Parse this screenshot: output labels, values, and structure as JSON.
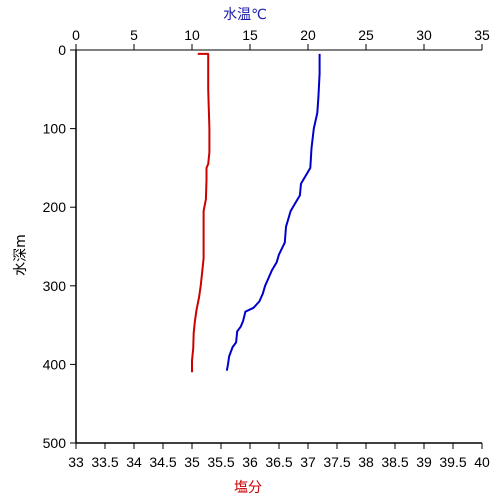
{
  "chart_data": {
    "type": "line",
    "title": "",
    "top_axis": {
      "label": "水温℃",
      "color": "#1a1aaa",
      "range": [
        0,
        35
      ],
      "ticks": [
        "0",
        "5",
        "10",
        "15",
        "20",
        "25",
        "30",
        "35"
      ]
    },
    "bottom_axis": {
      "label": "塩分",
      "color": "#cc0000",
      "range": [
        33,
        40
      ],
      "ticks": [
        "33",
        "33.5",
        "34",
        "34.5",
        "35",
        "35.5",
        "36",
        "36.5",
        "37",
        "37.5",
        "38",
        "38.5",
        "39",
        "39.5",
        "40"
      ]
    },
    "left_axis": {
      "label": "水深m",
      "range": [
        0,
        500
      ],
      "inverted": true,
      "ticks": [
        "0",
        "100",
        "200",
        "300",
        "400",
        "500"
      ]
    },
    "grid": false,
    "series": [
      {
        "axis": "top",
        "color": "#0000cc",
        "points": [
          [
            21.0,
            5
          ],
          [
            21.0,
            30
          ],
          [
            20.9,
            60
          ],
          [
            20.8,
            80
          ],
          [
            20.5,
            100
          ],
          [
            20.3,
            125
          ],
          [
            20.2,
            150
          ],
          [
            19.8,
            160
          ],
          [
            19.4,
            170
          ],
          [
            19.3,
            185
          ],
          [
            18.9,
            195
          ],
          [
            18.5,
            205
          ],
          [
            18.3,
            215
          ],
          [
            18.1,
            225
          ],
          [
            18.0,
            245
          ],
          [
            17.5,
            260
          ],
          [
            17.3,
            270
          ],
          [
            16.9,
            280
          ],
          [
            16.6,
            290
          ],
          [
            16.3,
            300
          ],
          [
            16.1,
            310
          ],
          [
            15.8,
            320
          ],
          [
            15.3,
            328
          ],
          [
            14.6,
            333
          ],
          [
            14.4,
            345
          ],
          [
            14.2,
            352
          ],
          [
            13.9,
            358
          ],
          [
            13.8,
            372
          ],
          [
            13.5,
            378
          ],
          [
            13.2,
            390
          ],
          [
            13.1,
            400
          ],
          [
            13.0,
            408
          ]
        ]
      },
      {
        "axis": "bottom",
        "color": "#cc0000",
        "points": [
          [
            35.1,
            5
          ],
          [
            35.28,
            5
          ],
          [
            35.28,
            50
          ],
          [
            35.3,
            100
          ],
          [
            35.3,
            130
          ],
          [
            35.28,
            145
          ],
          [
            35.25,
            150
          ],
          [
            35.25,
            165
          ],
          [
            35.24,
            190
          ],
          [
            35.2,
            205
          ],
          [
            35.2,
            230
          ],
          [
            35.2,
            250
          ],
          [
            35.2,
            265
          ],
          [
            35.18,
            280
          ],
          [
            35.15,
            300
          ],
          [
            35.12,
            315
          ],
          [
            35.08,
            330
          ],
          [
            35.05,
            345
          ],
          [
            35.03,
            360
          ],
          [
            35.02,
            380
          ],
          [
            35.0,
            395
          ],
          [
            35.0,
            410
          ]
        ]
      }
    ]
  }
}
